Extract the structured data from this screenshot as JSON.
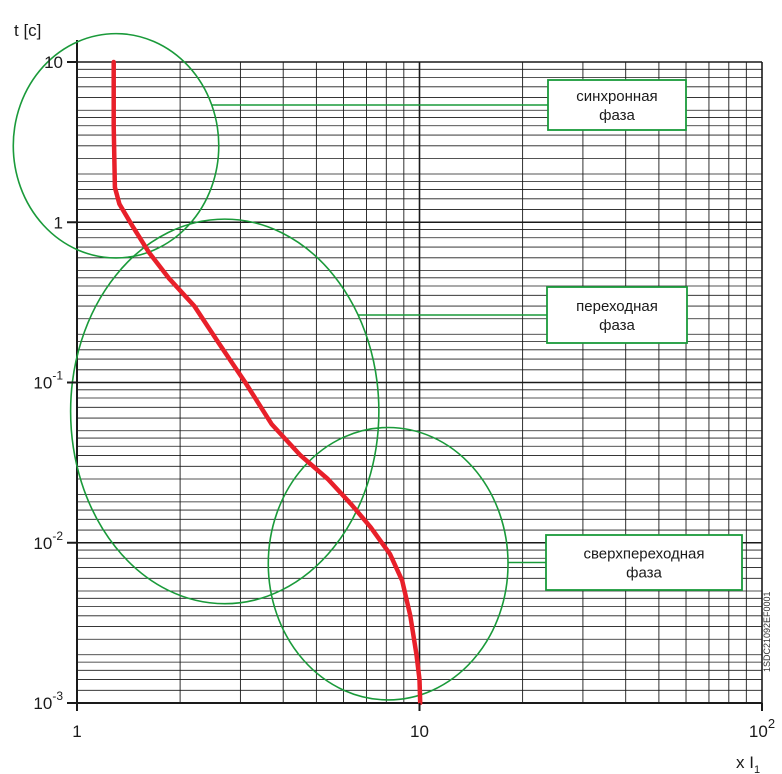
{
  "chart_data": {
    "type": "line",
    "x_scale": "log",
    "y_scale": "log",
    "xlim": [
      1,
      100
    ],
    "ylim": [
      0.001,
      10
    ],
    "xlabel": "x I1",
    "ylabel": "t [c]",
    "x_ticks": [
      {
        "value": 1,
        "base": "1",
        "exp": ""
      },
      {
        "value": 10,
        "base": "10",
        "exp": ""
      },
      {
        "value": 100,
        "base": "10",
        "exp": "2"
      }
    ],
    "y_ticks": [
      {
        "value": 10,
        "base": "10",
        "exp": ""
      },
      {
        "value": 1,
        "base": "1",
        "exp": ""
      },
      {
        "value": 0.1,
        "base": "10",
        "exp": "-1"
      },
      {
        "value": 0.01,
        "base": "10",
        "exp": "-2"
      },
      {
        "value": 0.001,
        "base": "10",
        "exp": "-3"
      }
    ],
    "grid": true,
    "series": [
      {
        "color": "#e8202a",
        "x": [
          1.28,
          1.28,
          1.29,
          1.33,
          1.45,
          1.62,
          1.85,
          2.2,
          2.6,
          3.1,
          3.7,
          4.5,
          5.4,
          6.3,
          7.2,
          8.2,
          8.9,
          9.4,
          9.8,
          10.0,
          10.05
        ],
        "y": [
          10,
          4.0,
          1.65,
          1.3,
          0.95,
          0.65,
          0.45,
          0.3,
          0.175,
          0.1,
          0.055,
          0.035,
          0.025,
          0.0175,
          0.0125,
          0.0085,
          0.0058,
          0.0035,
          0.002,
          0.0014,
          0.001
        ]
      }
    ],
    "regions": [
      {
        "label_line1": "синхронная",
        "label_line2": "фаза",
        "center": [
          1.3,
          3.0
        ],
        "radius_x_decades": 0.3,
        "radius_y_decades": 0.7
      },
      {
        "label_line1": "переходная",
        "label_line2": "фаза",
        "center": [
          2.7,
          0.066
        ],
        "radius_x_decades": 0.45,
        "radius_y_decades": 1.2
      },
      {
        "label_line1": "сверхпереходная",
        "label_line2": "фаза",
        "center": [
          8.1,
          0.0074
        ],
        "radius_x_decades": 0.35,
        "radius_y_decades": 0.85
      }
    ],
    "colors": {
      "curve": "#e8202a",
      "region": "#1a9a3a",
      "grid": "#1a1a1a"
    }
  },
  "axis_labels": {
    "y_text": "t [c]",
    "x_prefix": "x I",
    "x_subscript": "1"
  },
  "code_text": "1SDC21092EF0001"
}
